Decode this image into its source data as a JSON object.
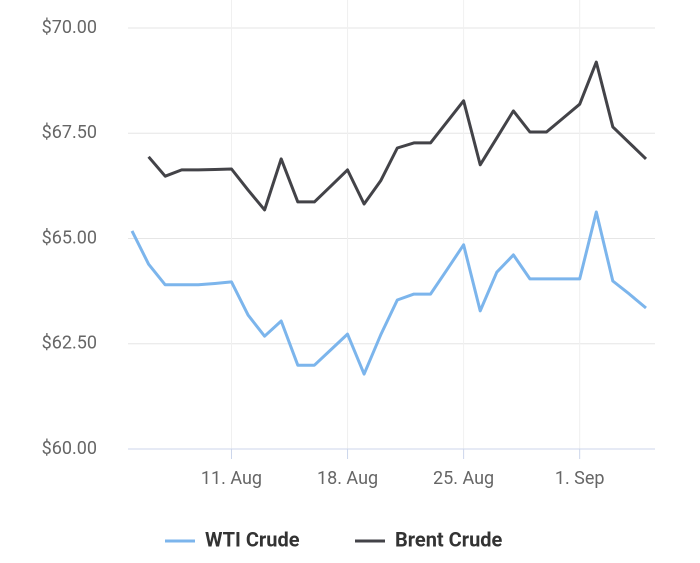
{
  "chart_data": {
    "type": "line",
    "x": [
      "08-05",
      "08-06",
      "08-07",
      "08-08",
      "08-09",
      "08-10",
      "08-11",
      "08-12",
      "08-13",
      "08-14",
      "08-15",
      "08-16",
      "08-17",
      "08-18",
      "08-19",
      "08-20",
      "08-21",
      "08-22",
      "08-23",
      "08-24",
      "08-25",
      "08-26",
      "08-27",
      "08-28",
      "08-29",
      "08-30",
      "08-31",
      "09-01",
      "09-02",
      "09-03",
      "09-04",
      "09-05"
    ],
    "series": [
      {
        "name": "WTI Crude",
        "color": "#7cb5ec",
        "values": [
          65.18,
          64.39,
          63.9,
          63.9,
          63.9,
          63.93,
          63.97,
          63.18,
          62.68,
          63.04,
          61.99,
          61.99,
          62.36,
          62.73,
          61.78,
          62.71,
          63.54,
          63.68,
          63.68,
          64.26,
          64.85,
          63.28,
          64.2,
          64.61,
          64.04,
          64.04,
          64.04,
          64.04,
          65.63,
          63.99,
          63.68,
          63.35
        ]
      },
      {
        "name": "Brent Crude",
        "color": "#434348",
        "values": [
          null,
          66.94,
          66.48,
          66.63,
          66.63,
          66.64,
          66.65,
          66.15,
          65.68,
          66.89,
          65.87,
          65.87,
          66.25,
          66.63,
          65.82,
          66.37,
          67.15,
          67.27,
          67.27,
          67.77,
          68.27,
          66.75,
          67.39,
          68.03,
          67.53,
          67.53,
          67.86,
          68.19,
          69.19,
          67.65,
          67.27,
          66.89
        ]
      }
    ],
    "xlim": [
      "08-05",
      "09-05"
    ],
    "xticks": [
      {
        "value": "08-11",
        "label": "11. Aug"
      },
      {
        "value": "08-18",
        "label": "18. Aug"
      },
      {
        "value": "08-25",
        "label": "25. Aug"
      },
      {
        "value": "09-01",
        "label": "1. Sep"
      }
    ],
    "ylim": [
      60,
      70
    ],
    "yticks": [
      {
        "value": 60,
        "label": "$60.00"
      },
      {
        "value": 62.5,
        "label": "$62.50"
      },
      {
        "value": 65,
        "label": "$65.00"
      },
      {
        "value": 67.5,
        "label": "$67.50"
      },
      {
        "value": 70,
        "label": "$70.00"
      }
    ],
    "grid": true,
    "legend": "bottom"
  }
}
